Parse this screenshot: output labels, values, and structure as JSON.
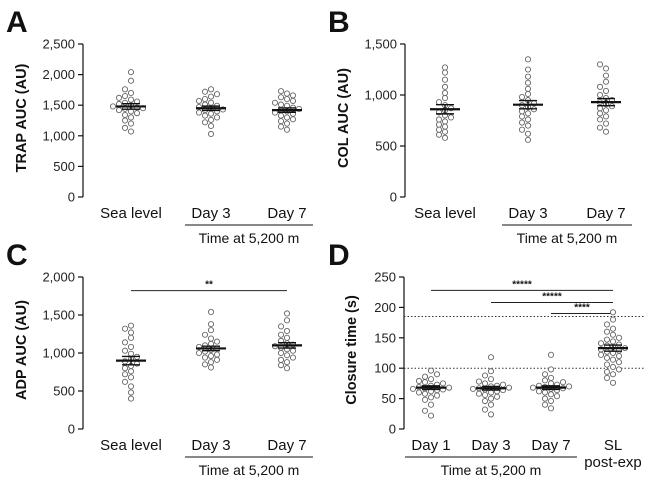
{
  "chart_data": [
    {
      "panel": "A",
      "type": "scatter",
      "ylabel": "TRAP AUC (AU)",
      "ylim": [
        0,
        2500
      ],
      "yticks": [
        0,
        500,
        1000,
        1500,
        2000,
        2500
      ],
      "ytick_labels": [
        "0",
        "500",
        "1,000",
        "1,500",
        "2,000",
        "2,500"
      ],
      "categories": [
        "Sea level",
        "Day 3",
        "Day 7"
      ],
      "group_label": "Time at 5,200 m",
      "group_spans": [
        1,
        2
      ],
      "means": [
        1480,
        1450,
        1420
      ],
      "sems": [
        45,
        35,
        35
      ],
      "points": [
        [
          2040,
          1900,
          1760,
          1700,
          1650,
          1620,
          1590,
          1560,
          1540,
          1520,
          1500,
          1480,
          1460,
          1450,
          1440,
          1420,
          1400,
          1370,
          1340,
          1300,
          1250,
          1200,
          1130,
          1070
        ],
        [
          1760,
          1720,
          1680,
          1640,
          1600,
          1570,
          1540,
          1510,
          1490,
          1470,
          1450,
          1430,
          1420,
          1400,
          1380,
          1360,
          1330,
          1300,
          1260,
          1220,
          1160,
          1030
        ],
        [
          1730,
          1690,
          1660,
          1630,
          1600,
          1570,
          1540,
          1510,
          1490,
          1460,
          1440,
          1420,
          1400,
          1380,
          1360,
          1330,
          1300,
          1270,
          1240,
          1200,
          1150,
          1100
        ]
      ],
      "significance": []
    },
    {
      "panel": "B",
      "type": "scatter",
      "ylabel": "COL AUC (AU)",
      "ylim": [
        0,
        1500
      ],
      "yticks": [
        0,
        500,
        1000,
        1500
      ],
      "ytick_labels": [
        "0",
        "500",
        "1,000",
        "1,500"
      ],
      "categories": [
        "Sea level",
        "Day 3",
        "Day 7"
      ],
      "group_label": "Time at 5,200 m",
      "group_spans": [
        1,
        2
      ],
      "means": [
        860,
        905,
        930
      ],
      "sems": [
        45,
        40,
        35
      ],
      "points": [
        [
          1270,
          1220,
          1150,
          1080,
          1020,
          970,
          930,
          900,
          870,
          850,
          830,
          800,
          780,
          760,
          740,
          710,
          690,
          660,
          640,
          610,
          580
        ],
        [
          1350,
          1250,
          1180,
          1120,
          1060,
          1010,
          980,
          950,
          920,
          900,
          880,
          860,
          840,
          820,
          790,
          760,
          730,
          700,
          660,
          620,
          560
        ],
        [
          1300,
          1260,
          1190,
          1130,
          1080,
          1040,
          1000,
          970,
          950,
          930,
          910,
          890,
          870,
          850,
          820,
          790,
          760,
          720,
          680,
          640
        ]
      ],
      "significance": []
    },
    {
      "panel": "C",
      "type": "scatter",
      "ylabel": "ADP AUC (AU)",
      "ylim": [
        0,
        2000
      ],
      "yticks": [
        0,
        500,
        1000,
        1500,
        2000
      ],
      "ytick_labels": [
        "0",
        "500",
        "1,000",
        "1,500",
        "2,000"
      ],
      "categories": [
        "Sea level",
        "Day 3",
        "Day 7"
      ],
      "group_label": "Time at 5,200 m",
      "group_spans": [
        1,
        2
      ],
      "means": [
        900,
        1060,
        1100
      ],
      "sems": [
        55,
        30,
        35
      ],
      "points": [
        [
          1360,
          1320,
          1270,
          1200,
          1140,
          1080,
          1030,
          990,
          950,
          920,
          890,
          860,
          830,
          800,
          760,
          720,
          680,
          620,
          560,
          480,
          400
        ],
        [
          1540,
          1380,
          1300,
          1240,
          1190,
          1150,
          1120,
          1100,
          1080,
          1060,
          1040,
          1020,
          1000,
          980,
          960,
          940,
          910,
          880,
          850,
          810
        ],
        [
          1520,
          1430,
          1350,
          1290,
          1240,
          1200,
          1160,
          1130,
          1110,
          1090,
          1070,
          1050,
          1030,
          1000,
          970,
          940,
          910,
          880,
          840,
          800
        ]
      ],
      "significance": [
        {
          "from": 0,
          "to": 2,
          "y": 1820,
          "label": "**"
        }
      ]
    },
    {
      "panel": "D",
      "type": "scatter",
      "ylabel": "Closure time (s)",
      "ylim": [
        0,
        250
      ],
      "yticks": [
        0,
        50,
        100,
        150,
        200,
        250
      ],
      "ytick_labels": [
        "0",
        "50",
        "100",
        "150",
        "200",
        "250"
      ],
      "categories": [
        "Day 1",
        "Day 3",
        "Day 7",
        "SL\npost-exp"
      ],
      "group_label": "Time at 5,200 m",
      "group_spans": [
        0,
        2
      ],
      "means": [
        68,
        67,
        68,
        133
      ],
      "sems": [
        3,
        3,
        3,
        5
      ],
      "reference_lines": [
        100,
        185
      ],
      "points": [
        [
          96,
          90,
          86,
          82,
          79,
          77,
          75,
          73,
          71,
          70,
          69,
          68,
          67,
          66,
          65,
          64,
          62,
          60,
          58,
          55,
          52,
          48,
          40,
          30,
          22
        ],
        [
          118,
          95,
          88,
          82,
          78,
          75,
          73,
          71,
          70,
          68,
          67,
          66,
          65,
          64,
          62,
          60,
          58,
          56,
          53,
          50,
          46,
          40,
          32,
          24
        ],
        [
          122,
          98,
          90,
          84,
          80,
          77,
          75,
          73,
          71,
          70,
          69,
          68,
          67,
          66,
          64,
          62,
          60,
          57,
          54,
          50,
          46,
          40,
          34
        ],
        [
          192,
          180,
          172,
          165,
          160,
          155,
          150,
          147,
          144,
          141,
          139,
          137,
          135,
          133,
          131,
          129,
          127,
          125,
          122,
          120,
          117,
          114,
          110,
          106,
          102,
          98,
          94,
          90,
          84,
          76
        ]
      ],
      "significance": [
        {
          "from": 0,
          "to": 3,
          "y": 228,
          "label": "*****"
        },
        {
          "from": 1,
          "to": 3,
          "y": 208,
          "label": "*****"
        },
        {
          "from": 2,
          "to": 3,
          "y": 190,
          "label": "****"
        }
      ]
    }
  ]
}
